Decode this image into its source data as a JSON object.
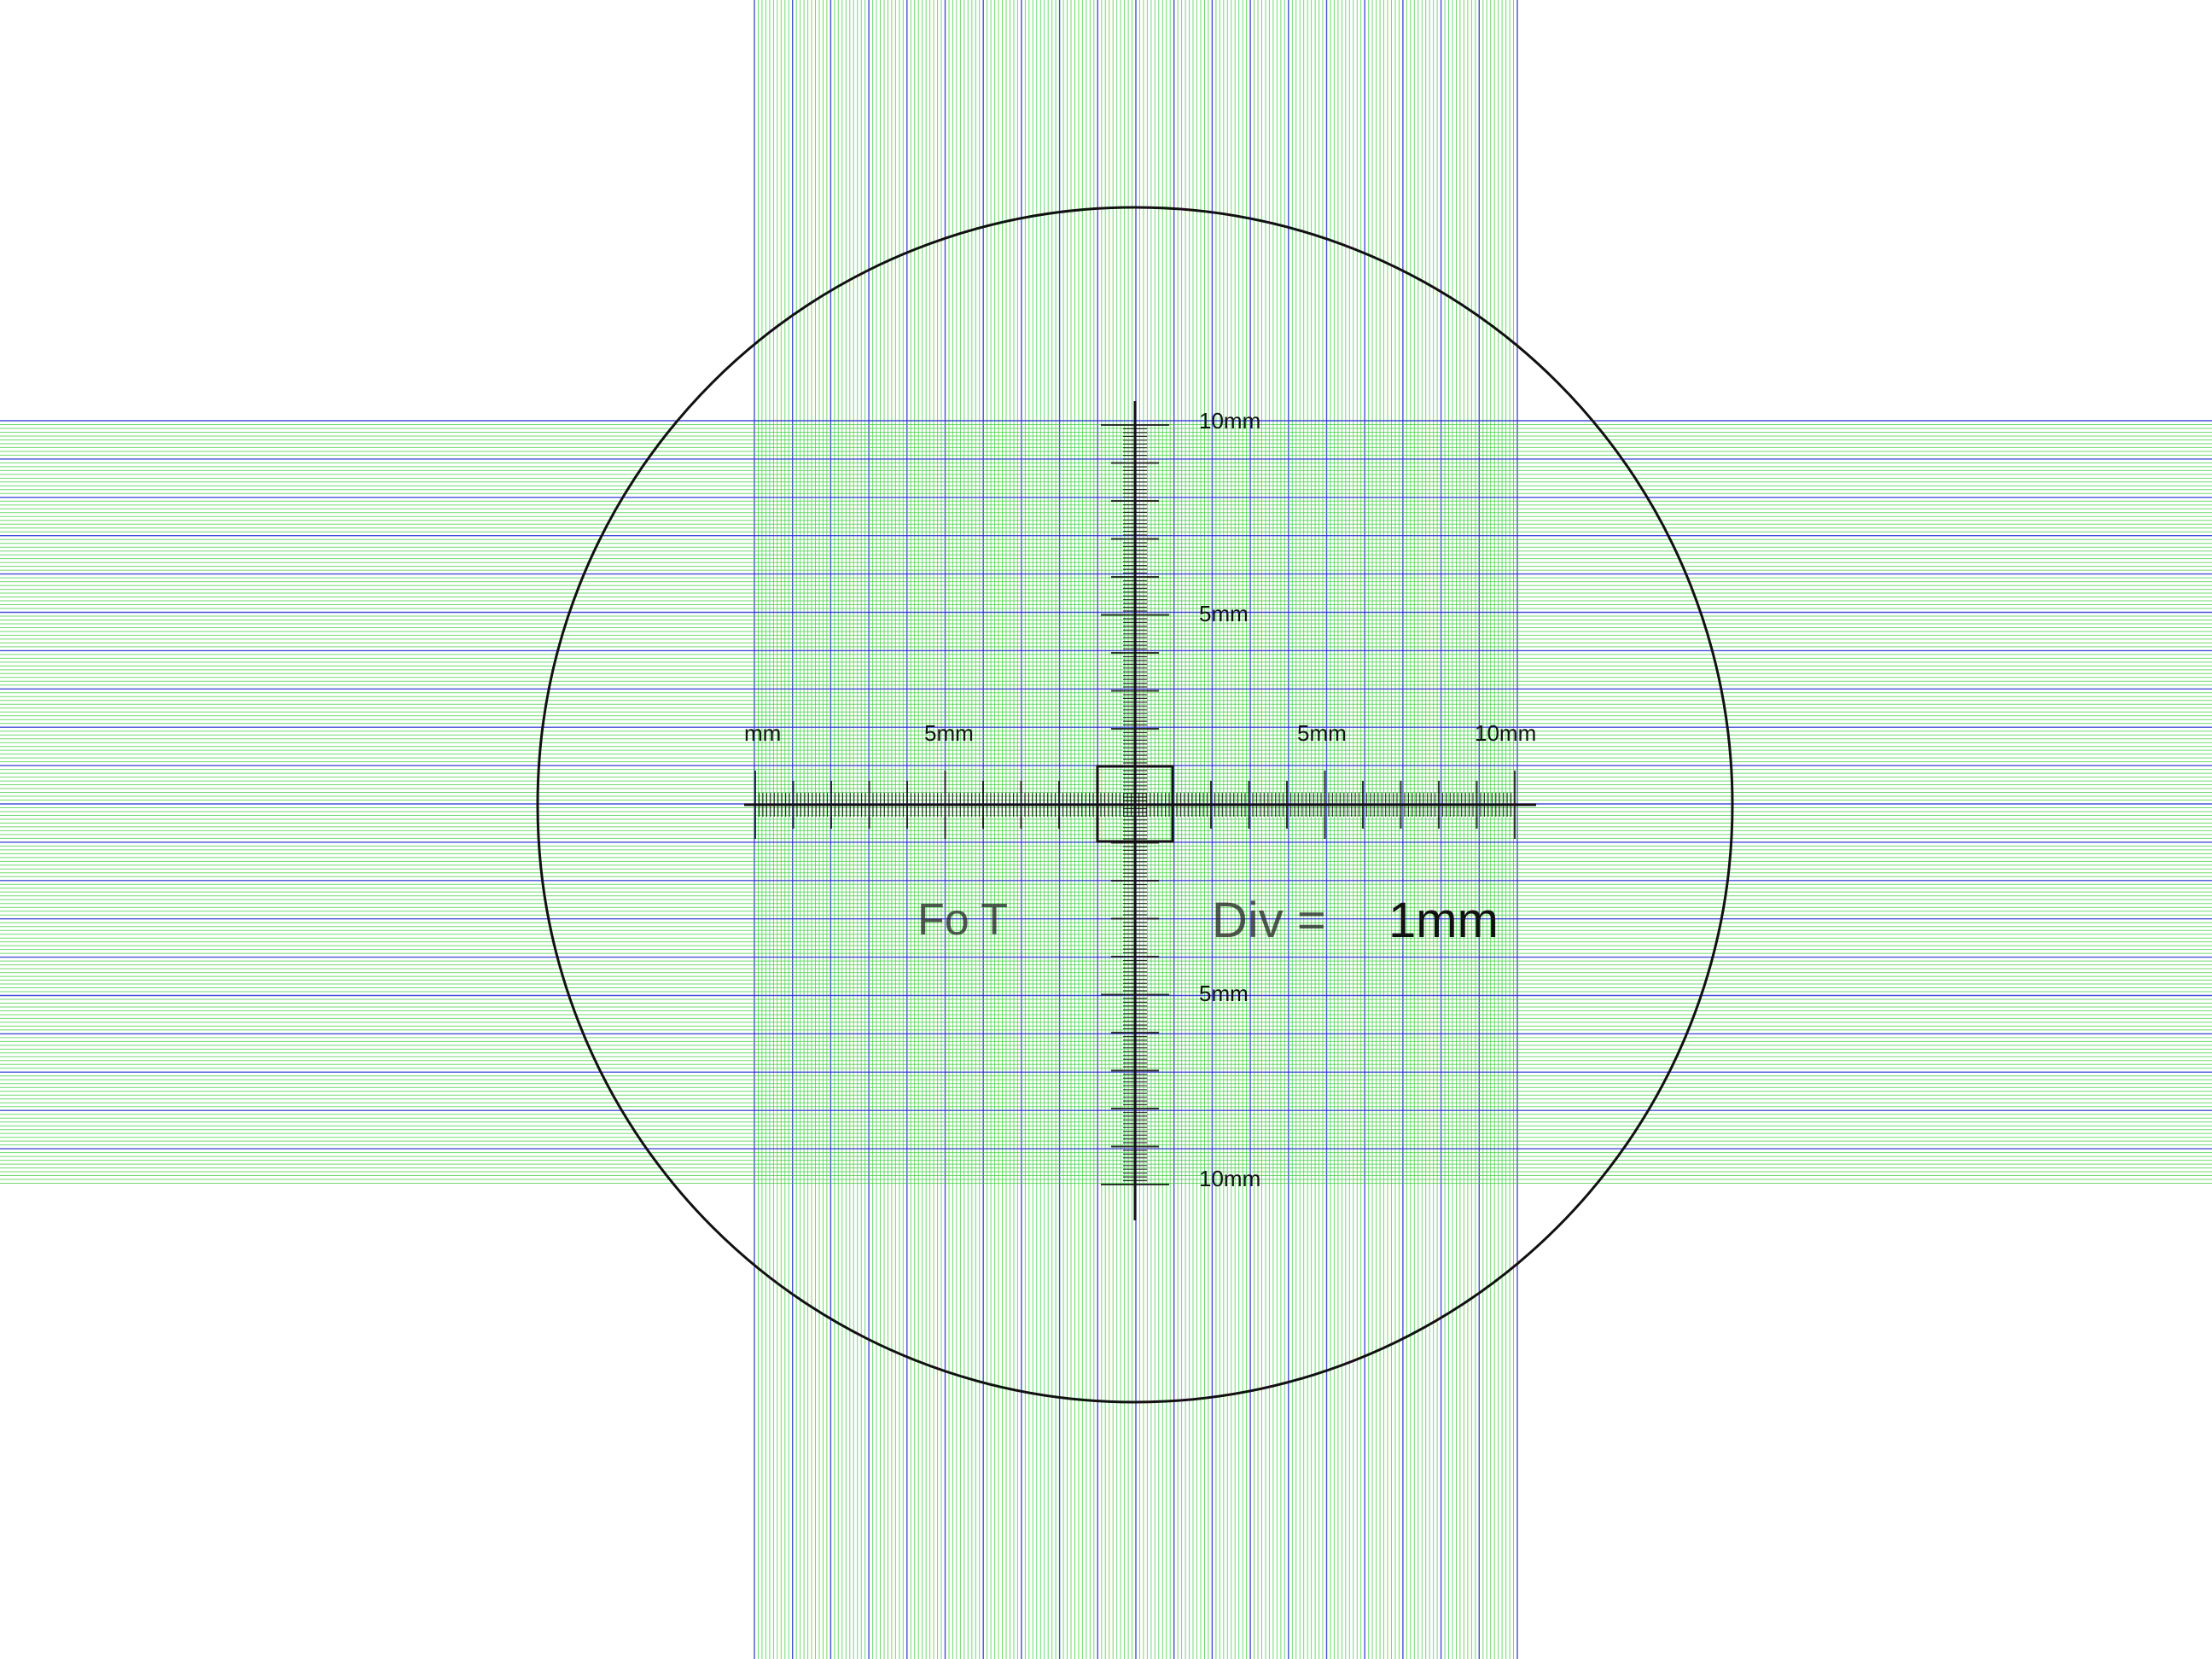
{
  "colors": {
    "background": "#ffffff",
    "grid_minor": "#33cc33",
    "grid_major": "#2233cc",
    "reticle": "#111111",
    "circle": "#111111"
  },
  "scale": {
    "x_labels": [
      "mm",
      "5mm",
      "5mm",
      "10mm"
    ],
    "y_labels": [
      "10mm",
      "5mm",
      "5mm",
      "10mm"
    ],
    "caption": "1mm",
    "caption_partial": "Div = ",
    "caption_left": "Fo T"
  }
}
